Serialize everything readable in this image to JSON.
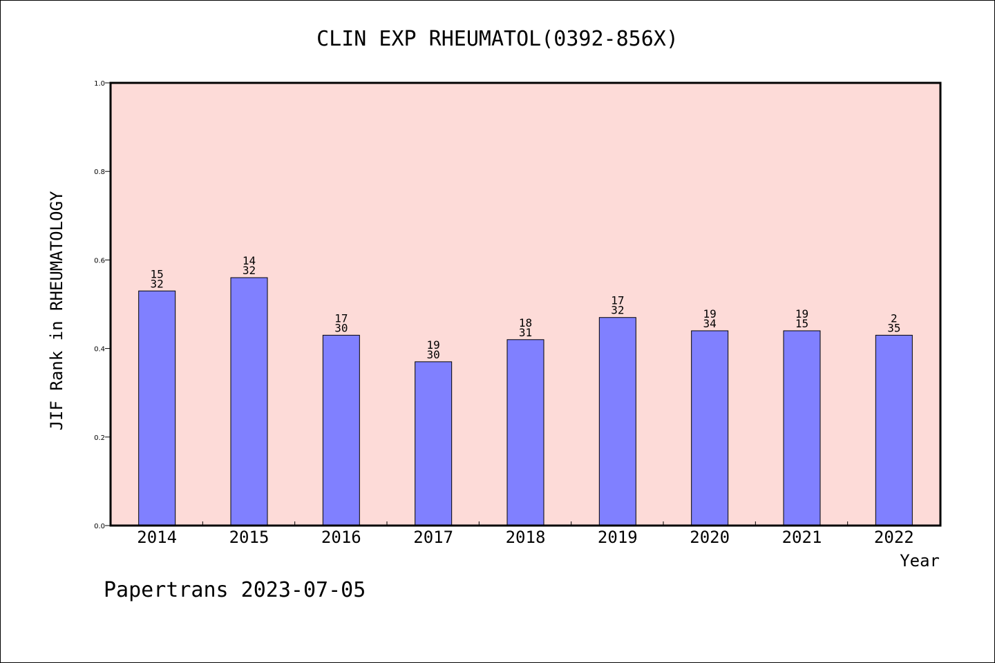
{
  "chart_data": {
    "type": "bar",
    "title": "CLIN EXP RHEUMATOL(0392-856X)",
    "xlabel": "Year",
    "ylabel": "JIF Rank in RHEUMATOLOGY",
    "ylim": [
      0,
      1.0
    ],
    "yticks": [
      "0.0",
      "0.2",
      "0.4",
      "0.6",
      "0.8",
      "1.0"
    ],
    "categories": [
      "2014",
      "2015",
      "2016",
      "2017",
      "2018",
      "2019",
      "2020",
      "2021",
      "2022"
    ],
    "values": [
      0.53,
      0.56,
      0.43,
      0.37,
      0.42,
      0.47,
      0.44,
      0.44,
      0.43
    ],
    "label_top": [
      "15",
      "14",
      "17",
      "19",
      "18",
      "17",
      "19",
      "19",
      "2"
    ],
    "label_bottom": [
      "32",
      "32",
      "30",
      "30",
      "31",
      "32",
      "34",
      "15",
      "35"
    ],
    "grid": false,
    "colors": {
      "plot_bg": "#fddbd8",
      "bar": "#8080ff",
      "bar_edge": "#000000"
    }
  },
  "footer": "Papertrans 2023-07-05"
}
